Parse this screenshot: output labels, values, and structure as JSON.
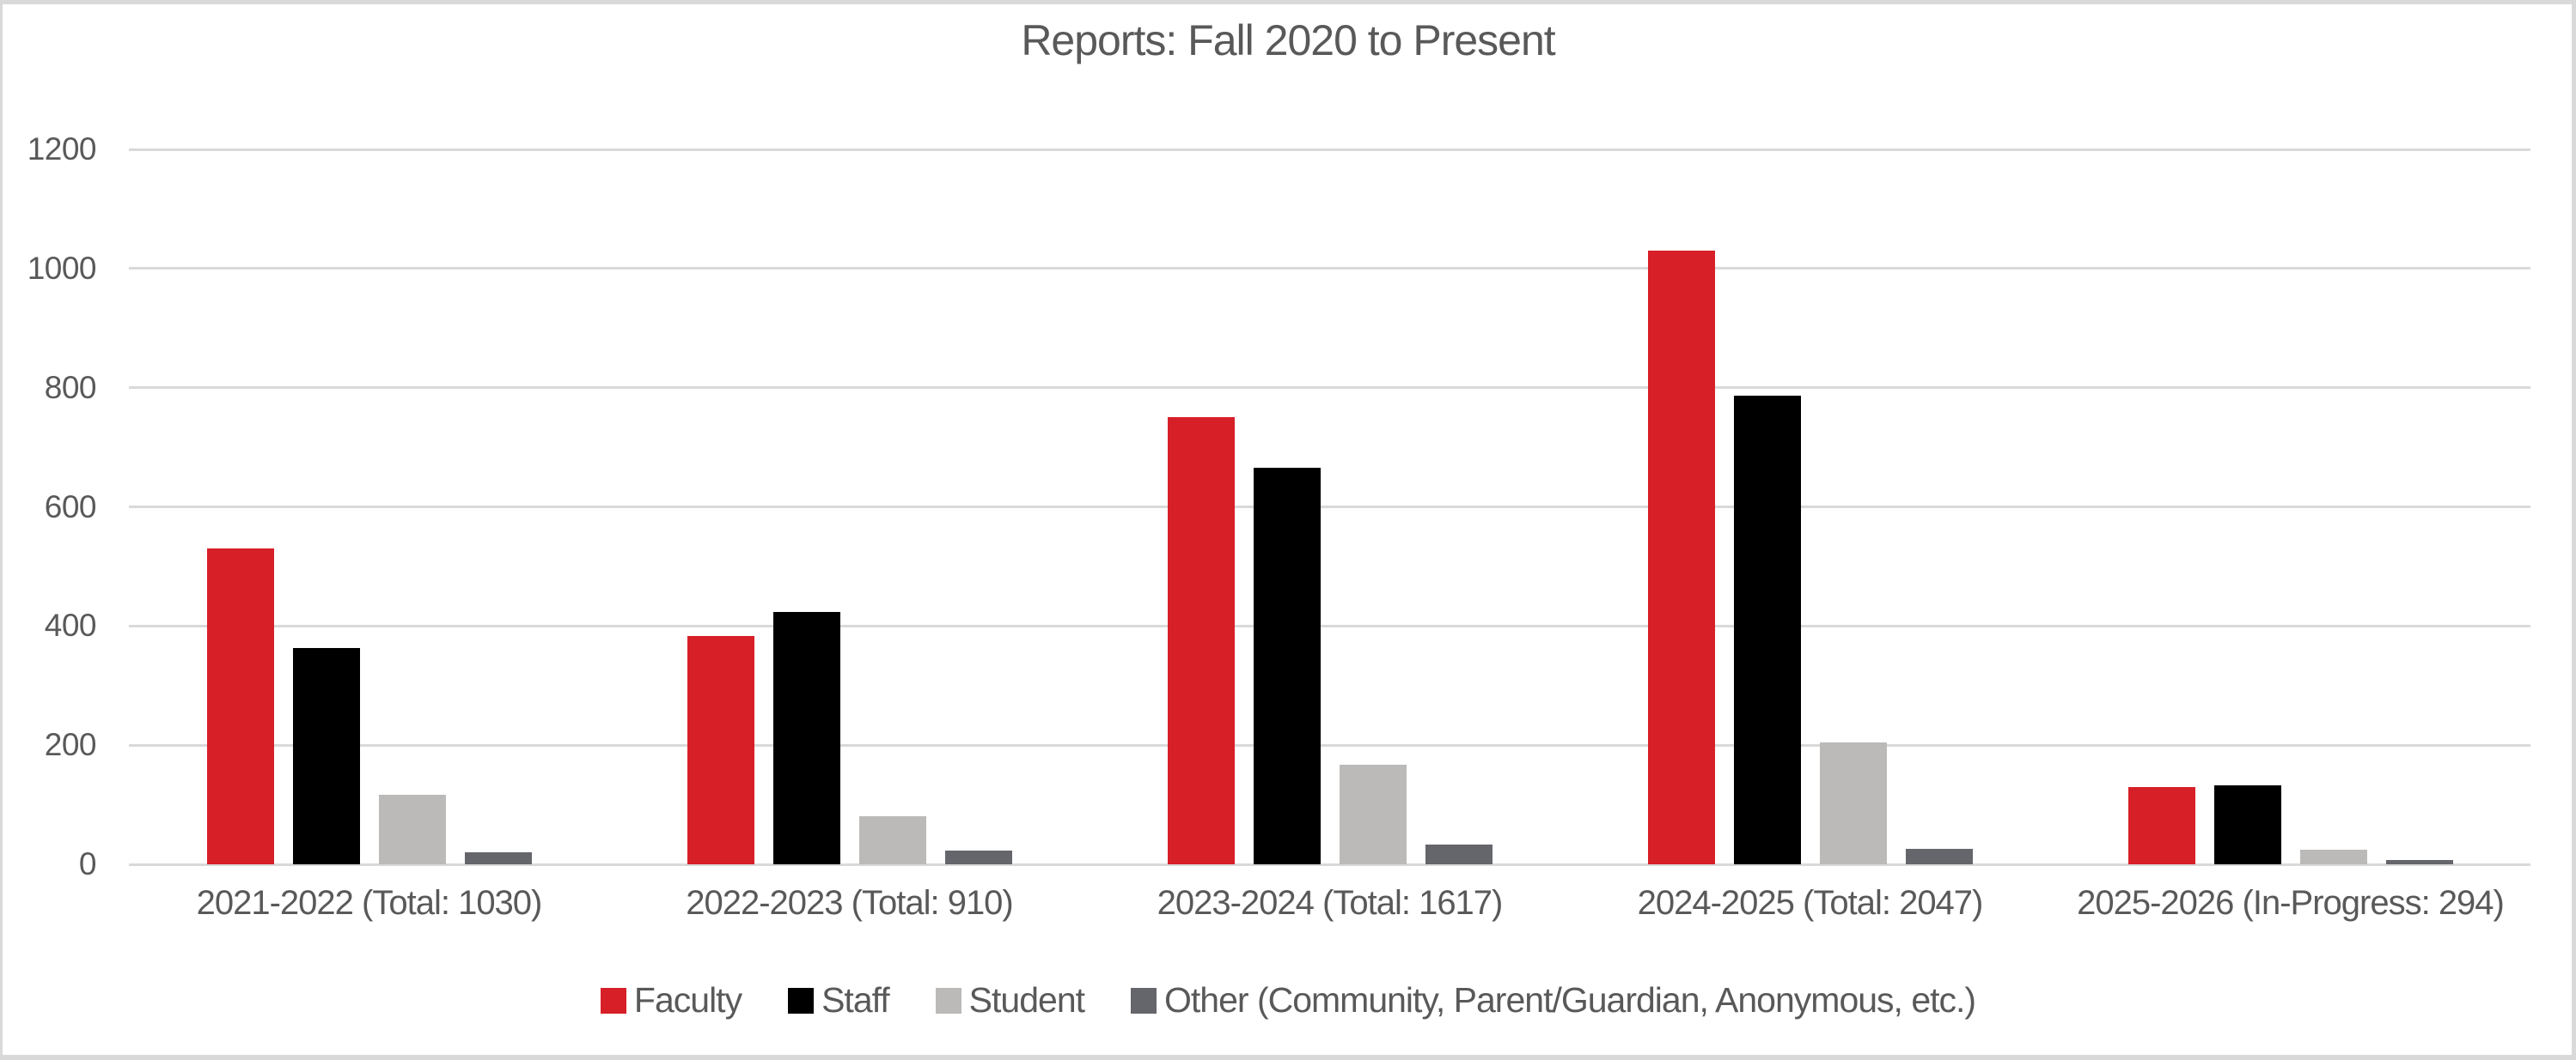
{
  "chart": {
    "title": "Reports: Fall 2020 to Present"
  },
  "chart_data": {
    "type": "bar",
    "title": "Reports: Fall 2020 to Present",
    "categories": [
      "2021-2022 (Total: 1030)",
      "2022-2023 (Total: 910)",
      "2023-2024 (Total: 1617)",
      "2024-2025 (Total: 2047)",
      "2025-2026 (In-Progress: 294)"
    ],
    "series": [
      {
        "name": "Faculty",
        "color": "#d71f27",
        "values": [
          530,
          383,
          751,
          1030,
          130
        ]
      },
      {
        "name": "Staff",
        "color": "#000000",
        "values": [
          363,
          423,
          666,
          787,
          132
        ]
      },
      {
        "name": "Student",
        "color": "#bbbab9",
        "values": [
          117,
          81,
          167,
          204,
          25
        ]
      },
      {
        "name": "Other (Community, Parent/Guardian, Anonymous, etc.)",
        "color": "#65666b",
        "values": [
          20,
          23,
          33,
          26,
          7
        ]
      }
    ],
    "group_totals": [
      1030,
      910,
      1617,
      2047,
      294
    ],
    "xlabel": "",
    "ylabel": "",
    "ylim": [
      0,
      1200
    ],
    "y_ticks": [
      "0",
      "200",
      "400",
      "600",
      "800",
      "1000",
      "1200"
    ],
    "grid": "horizontal",
    "legend_position": "bottom"
  },
  "legend": {
    "items": [
      {
        "label": "Faculty",
        "color": "#d71f27"
      },
      {
        "label": "Staff",
        "color": "#000000"
      },
      {
        "label": "Student",
        "color": "#bbbab9"
      },
      {
        "label": "Other (Community, Parent/Guardian, Anonymous, etc.)",
        "color": "#65666b"
      }
    ]
  },
  "colors": {
    "background": "#ffffff",
    "gridline": "#d9d9d9",
    "text": "#595959",
    "edge_strip": "#d9d9d9"
  }
}
